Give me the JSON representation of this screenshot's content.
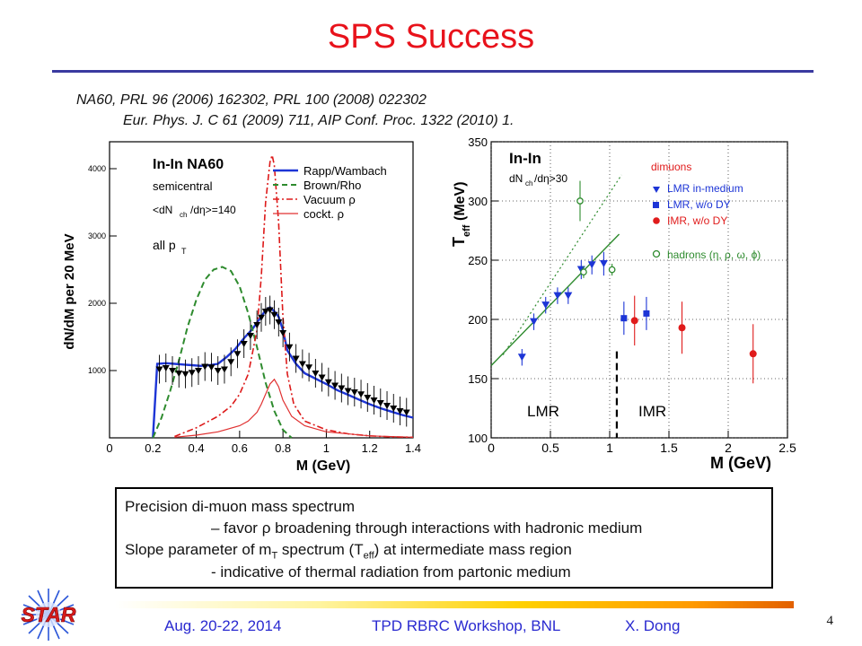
{
  "slide": {
    "title": "SPS Success",
    "ref_line1": "NA60, PRL 96 (2006) 162302, PRL 100 (2008) 022302",
    "ref_line2": "Eur. Phys. J. C 61 (2009) 711,  AIP Conf. Proc. 1322 (2010) 1.",
    "box_line1": "Precision di-muon mass spectrum",
    "box_line2": "– favor ρ broadening through interactions with hadronic medium",
    "box_line3": "Slope parameter of m",
    "box_line3_sub": "T",
    "box_line3_b": " spectrum (T",
    "box_line3_sub2": "eff",
    "box_line3_c": ") at intermediate mass region",
    "box_line4": "- indicative of thermal radiation from partonic medium",
    "footer_date": "Aug. 20-22, 2014",
    "footer_event": "TPD RBRC Workshop, BNL",
    "footer_author": "X. Dong",
    "page_number": "4",
    "logo_text": "STAR"
  },
  "chart_data": [
    {
      "type": "line",
      "xlabel": "M (GeV)",
      "ylabel": "dN/dM per 20 MeV",
      "xlim": [
        0,
        1.4
      ],
      "ylim": [
        0,
        4400
      ],
      "xticks": [
        "0",
        "0.2",
        "0.4",
        "0.6",
        "0.8",
        "1",
        "1.2",
        "1.4"
      ],
      "yticks": [
        "1000",
        "2000",
        "3000",
        "4000"
      ],
      "annotations": [
        "In-In NA60",
        "semicentral",
        "<dN",
        "ch",
        "/dη>=140",
        "all p",
        "T"
      ],
      "legend": [
        "Rapp/Wambach",
        "Brown/Rho",
        "Vacuum ρ",
        "cockt. ρ"
      ],
      "series": [
        {
          "name": "Rapp/Wambach",
          "color": "#1d35d6",
          "style": "solid",
          "x": [
            0.2,
            0.22,
            0.26,
            0.3,
            0.34,
            0.38,
            0.42,
            0.46,
            0.5,
            0.54,
            0.58,
            0.62,
            0.66,
            0.7,
            0.72,
            0.74,
            0.76,
            0.78,
            0.8,
            0.82,
            0.86,
            0.9,
            0.95,
            1.0,
            1.05,
            1.1,
            1.15,
            1.2,
            1.25,
            1.3,
            1.35,
            1.4
          ],
          "y": [
            0,
            1100,
            1110,
            1100,
            1090,
            1080,
            1070,
            1080,
            1100,
            1200,
            1320,
            1480,
            1620,
            1800,
            1900,
            1940,
            1880,
            1800,
            1600,
            1300,
            1100,
            960,
            880,
            800,
            710,
            640,
            570,
            500,
            440,
            390,
            340,
            300
          ]
        },
        {
          "name": "Brown/Rho",
          "color": "#2e8b2e",
          "style": "dashed",
          "x": [
            0.2,
            0.24,
            0.28,
            0.32,
            0.36,
            0.4,
            0.44,
            0.48,
            0.52,
            0.56,
            0.6,
            0.64,
            0.68,
            0.72,
            0.76,
            0.8,
            0.84
          ],
          "y": [
            0,
            300,
            700,
            1150,
            1650,
            2050,
            2350,
            2500,
            2540,
            2480,
            2250,
            1850,
            1350,
            820,
            400,
            120,
            0
          ]
        },
        {
          "name": "Vacuum ρ",
          "color": "#dd1a1a",
          "style": "dashdot",
          "x": [
            0.3,
            0.4,
            0.5,
            0.56,
            0.6,
            0.64,
            0.68,
            0.7,
            0.72,
            0.74,
            0.75,
            0.76,
            0.78,
            0.8,
            0.82,
            0.85,
            0.9,
            1.0,
            1.1,
            1.2,
            1.3,
            1.4
          ],
          "y": [
            20,
            150,
            320,
            470,
            650,
            950,
            1600,
            2400,
            3500,
            4100,
            4200,
            4050,
            3200,
            1800,
            950,
            500,
            250,
            120,
            60,
            30,
            15,
            10
          ]
        },
        {
          "name": "cockt. ρ",
          "color": "#e03030",
          "style": "solid",
          "x": [
            0.3,
            0.4,
            0.5,
            0.6,
            0.64,
            0.68,
            0.7,
            0.72,
            0.74,
            0.76,
            0.78,
            0.8,
            0.84,
            0.9,
            1.0,
            1.2,
            1.4
          ],
          "y": [
            10,
            40,
            90,
            180,
            250,
            380,
            500,
            650,
            800,
            870,
            760,
            560,
            320,
            180,
            90,
            30,
            10
          ]
        },
        {
          "name": "data",
          "color": "#000000",
          "style": "markers",
          "x": [
            0.23,
            0.26,
            0.29,
            0.32,
            0.35,
            0.38,
            0.41,
            0.44,
            0.47,
            0.5,
            0.53,
            0.56,
            0.59,
            0.62,
            0.65,
            0.68,
            0.7,
            0.72,
            0.74,
            0.76,
            0.78,
            0.8,
            0.83,
            0.86,
            0.89,
            0.92,
            0.95,
            0.98,
            1.01,
            1.04,
            1.07,
            1.1,
            1.13,
            1.16,
            1.19,
            1.22,
            1.25,
            1.28,
            1.31,
            1.34,
            1.37
          ],
          "y": [
            1020,
            1040,
            1000,
            960,
            950,
            970,
            1000,
            1060,
            1050,
            1000,
            1020,
            1130,
            1250,
            1400,
            1520,
            1680,
            1790,
            1880,
            1900,
            1830,
            1720,
            1560,
            1350,
            1180,
            1100,
            1050,
            960,
            900,
            830,
            780,
            740,
            700,
            680,
            650,
            600,
            560,
            520,
            480,
            440,
            400,
            380
          ]
        }
      ]
    },
    {
      "type": "scatter",
      "xlabel": "M (GeV)",
      "ylabel": "T",
      "ylabel_sub": "eff",
      "ylabel_unit": "(MeV)",
      "xlim": [
        0,
        2.5
      ],
      "ylim": [
        100,
        350
      ],
      "xticks": [
        "0",
        "0.5",
        "1",
        "1.5",
        "2",
        "2.5"
      ],
      "yticks": [
        "100",
        "150",
        "200",
        "250",
        "300",
        "350"
      ],
      "annotations": [
        "In-In",
        "dN",
        "ch",
        "/dη>30",
        "LMR",
        "IMR",
        "dimuons"
      ],
      "legend": [
        "LMR in-medium",
        "LMR, w/o DY",
        "IMR, w/o DY",
        "hadrons (η, ρ, ω, ϕ)"
      ],
      "series": [
        {
          "name": "LMR in-medium",
          "color": "#1d35d6",
          "marker": "triangle-down",
          "x": [
            0.26,
            0.36,
            0.46,
            0.56,
            0.65,
            0.76,
            0.85,
            0.95
          ],
          "y": [
            168,
            198,
            212,
            220,
            220,
            242,
            246,
            247
          ],
          "err": [
            7,
            7,
            7,
            7,
            7,
            8,
            8,
            10
          ]
        },
        {
          "name": "LMR, w/o DY",
          "color": "#1d35d6",
          "marker": "square",
          "x": [
            1.12,
            1.31
          ],
          "y": [
            201,
            205
          ],
          "err": [
            14,
            14
          ]
        },
        {
          "name": "IMR, w/o DY",
          "color": "#e01b1b",
          "marker": "circle",
          "x": [
            1.21,
            1.61,
            2.21
          ],
          "y": [
            199,
            193,
            171
          ],
          "err": [
            21,
            22,
            25
          ]
        },
        {
          "name": "hadrons (η, ρ, ω, ϕ)",
          "color": "#2e8b2e",
          "marker": "open-circle",
          "x": [
            0.75,
            0.78,
            1.02
          ],
          "y": [
            300,
            240,
            242
          ],
          "err": [
            17,
            5,
            5
          ]
        }
      ]
    }
  ]
}
